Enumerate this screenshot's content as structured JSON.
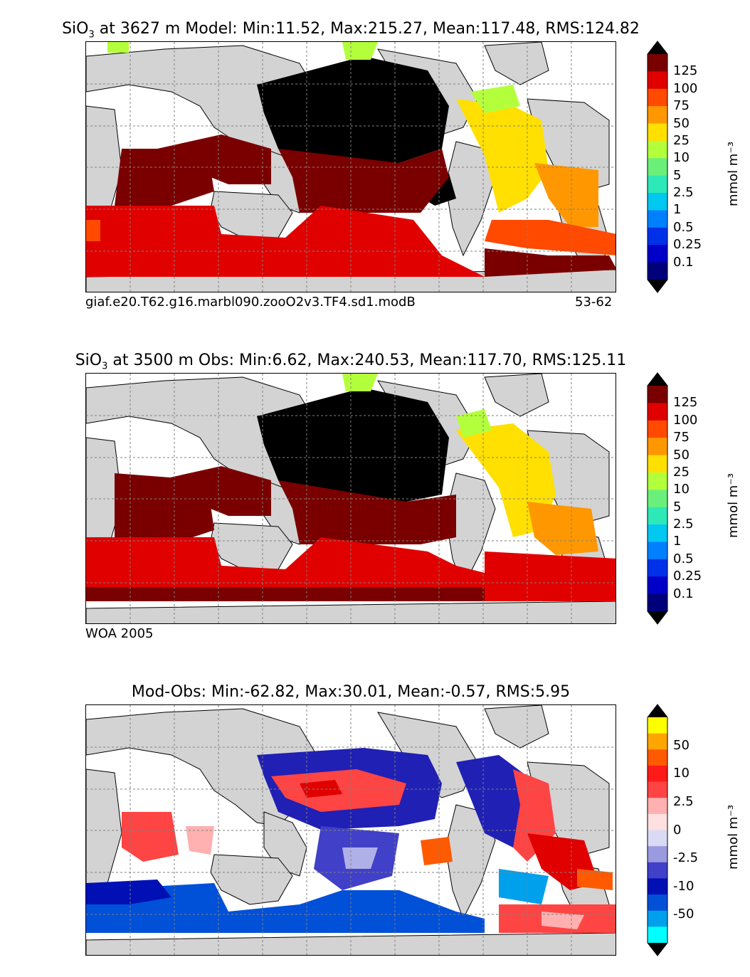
{
  "panels": [
    {
      "id": "model",
      "title_species": "SiO",
      "title_sub": "3",
      "title_rest": " at 3627 m Model: Min:11.52, Max:215.27, Mean:117.48, RMS:124.82",
      "left_note": "giaf.e20.T62.g16.marbl090.zooO2v3.TF4.sd1.modB",
      "right_note": "53-62"
    },
    {
      "id": "obs",
      "title_species": "SiO",
      "title_sub": "3",
      "title_rest": " at 3500 m Obs: Min:6.62, Max:240.53, Mean:117.70, RMS:125.11",
      "left_note": "WOA 2005",
      "right_note": ""
    },
    {
      "id": "diff",
      "title_species": "",
      "title_sub": "",
      "title_rest": "Mod-Obs: Min:-62.82, Max:30.01, Mean:-0.57, RMS:5.95",
      "left_note": "",
      "right_note": ""
    }
  ],
  "colorbar_abs": {
    "units": "mmol m⁻³",
    "levels": [
      "125",
      "100",
      "75",
      "50",
      "25",
      "10",
      "5",
      "2.5",
      "1",
      "0.5",
      "0.25",
      "0.1"
    ],
    "colors": [
      "#7a0000",
      "#e00000",
      "#ff4a00",
      "#ff9800",
      "#ffe000",
      "#b4ff3c",
      "#6af07a",
      "#2ee8b8",
      "#00c8f0",
      "#0080ff",
      "#0030e8",
      "#0000c8",
      "#00007a"
    ],
    "over": "#000000",
    "under": "#000000"
  },
  "colorbar_diff": {
    "units": "mmol m⁻³",
    "levels": [
      "50",
      "10",
      "2.5",
      "0",
      "-2.5",
      "-10",
      "-50"
    ],
    "colors": [
      "#ffff00",
      "#ffa500",
      "#ff5a00",
      "#ff1a1a",
      "#ff4444",
      "#ffb0b0",
      "#ffe0e0",
      "#dadaf4",
      "#9a9ae0",
      "#4040c8",
      "#0010b4",
      "#0050d8",
      "#00a0ec",
      "#00ffff"
    ],
    "over": "#000000",
    "under": "#000000"
  },
  "colors": {
    "land": "#d3d3d3",
    "ocean_missing": "#ffffff",
    "grid": "#808080"
  }
}
